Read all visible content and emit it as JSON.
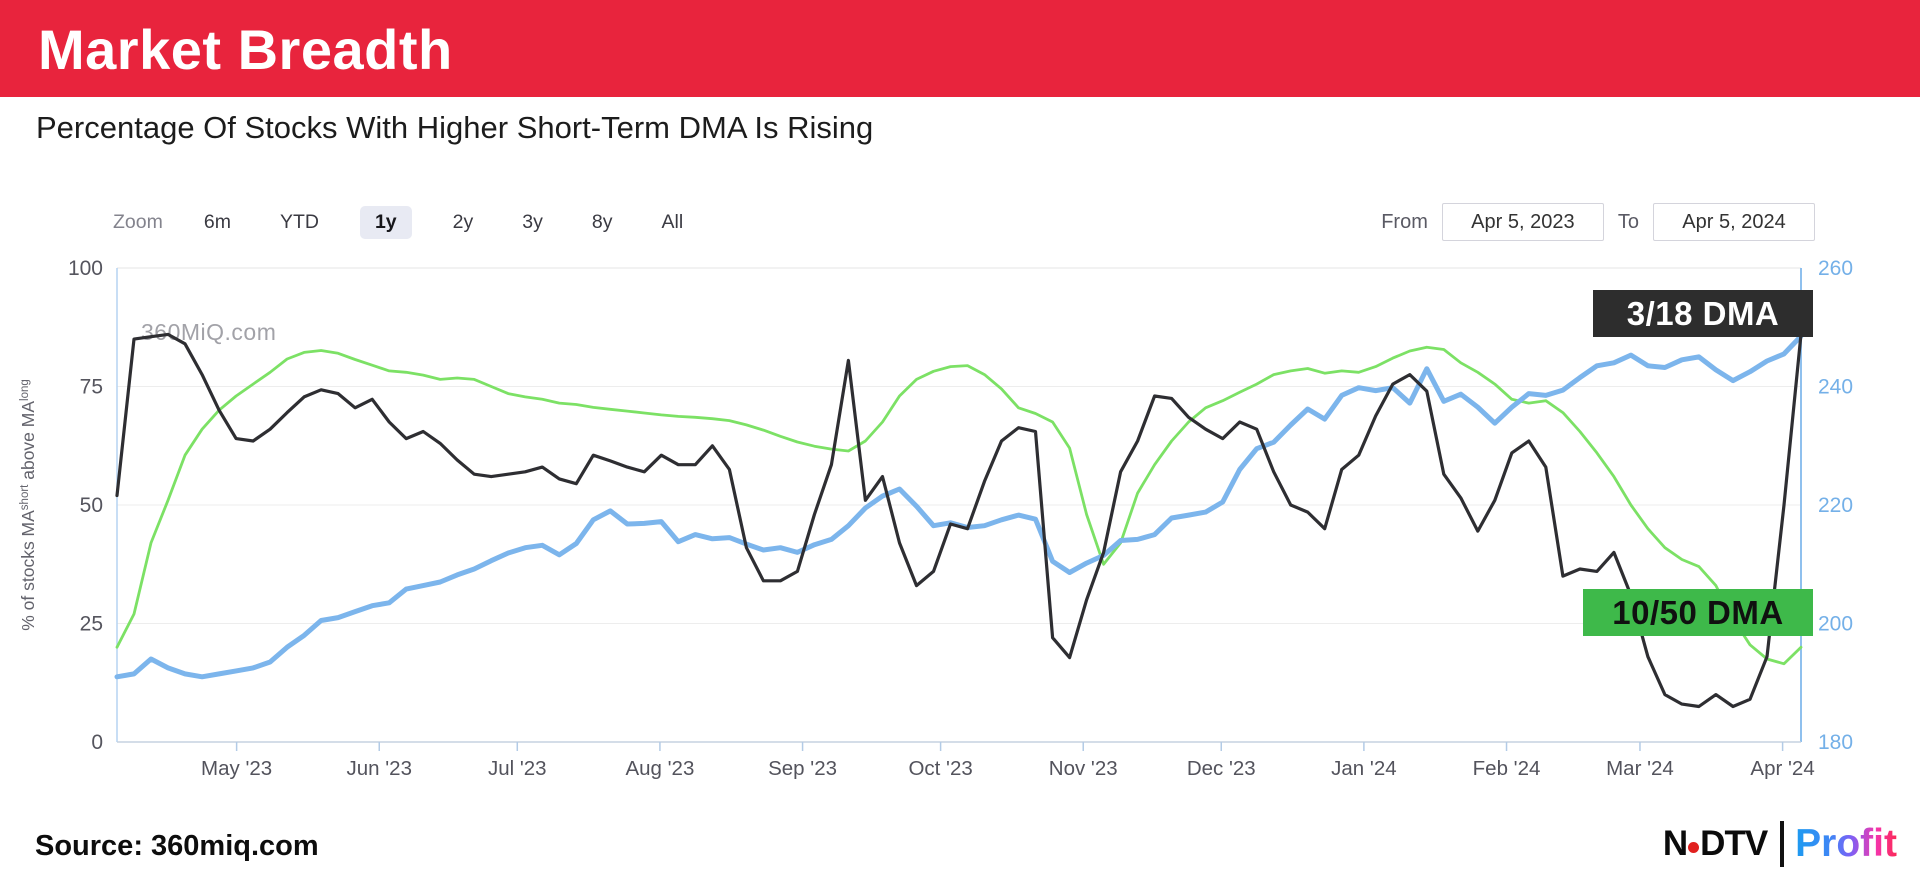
{
  "header": {
    "title": "Market Breadth",
    "bg_color": "#e8243d"
  },
  "subtitle": "Percentage Of Stocks With Higher Short-Term DMA Is Rising",
  "toolbar": {
    "zoom_label": "Zoom",
    "buttons": [
      {
        "label": "6m",
        "selected": false
      },
      {
        "label": "YTD",
        "selected": false
      },
      {
        "label": "1y",
        "selected": true
      },
      {
        "label": "2y",
        "selected": false
      },
      {
        "label": "3y",
        "selected": false
      },
      {
        "label": "8y",
        "selected": false
      },
      {
        "label": "All",
        "selected": false
      }
    ],
    "from_label": "From",
    "from_value": "Apr 5, 2023",
    "to_label": "To",
    "to_value": "Apr 5, 2024"
  },
  "chart_data": {
    "type": "line",
    "x_start": "Apr 5, 2023",
    "x_end": "Apr 5, 2024",
    "watermark": "360MiQ.com",
    "grid": "horizontal",
    "left_axis": {
      "title_parts": {
        "pre": "% of stocks MA",
        "sup1": "short",
        "mid": " above MA",
        "sup2": "long"
      },
      "ticks": [
        0,
        25,
        50,
        75,
        100
      ],
      "lim": [
        0,
        100
      ],
      "label_color": "#55555e"
    },
    "right_axis": {
      "ticks": [
        180,
        200,
        220,
        240,
        260
      ],
      "lim": [
        180,
        260
      ],
      "label_color": "#74b0e8"
    },
    "x_ticks": [
      {
        "label": "May '23",
        "day": 26
      },
      {
        "label": "Jun '23",
        "day": 57
      },
      {
        "label": "Jul '23",
        "day": 87
      },
      {
        "label": "Aug '23",
        "day": 118
      },
      {
        "label": "Sep '23",
        "day": 149
      },
      {
        "label": "Oct '23",
        "day": 179
      },
      {
        "label": "Nov '23",
        "day": 210
      },
      {
        "label": "Dec '23",
        "day": 240
      },
      {
        "label": "Jan '24",
        "day": 271
      },
      {
        "label": "Feb '24",
        "day": 302
      },
      {
        "label": "Mar '24",
        "day": 331
      },
      {
        "label": "Apr '24",
        "day": 362
      }
    ],
    "days_total": 366,
    "series": [
      {
        "id": "dma-10-50",
        "name": "10/50 DMA",
        "axis": "left",
        "color": "#7ce165",
        "width": 2.8,
        "values": [
          20,
          27,
          42,
          51,
          60.5,
          66,
          70,
          73,
          75.5,
          78,
          80.8,
          82.2,
          82.6,
          82,
          80.7,
          79.5,
          78.3,
          78,
          77.4,
          76.5,
          76.8,
          76.5,
          75,
          73.5,
          72.8,
          72.3,
          71.5,
          71.2,
          70.6,
          70.2,
          69.8,
          69.4,
          69,
          68.7,
          68.5,
          68.2,
          67.8,
          66.9,
          65.8,
          64.5,
          63.3,
          62.4,
          61.8,
          61.4,
          63.5,
          67.5,
          73,
          76.5,
          78.2,
          79.2,
          79.4,
          77.5,
          74.5,
          70.5,
          69.3,
          67.5,
          62,
          48,
          37.5,
          42,
          52.5,
          58.5,
          63.5,
          67.5,
          70.5,
          72,
          73.8,
          75.5,
          77.5,
          78.3,
          78.8,
          77.8,
          78.3,
          78,
          79.2,
          81,
          82.5,
          83.3,
          82.8,
          80,
          78,
          75.5,
          72.3,
          71.5,
          72,
          69.5,
          65.5,
          61,
          56,
          50,
          45,
          41,
          38.5,
          37,
          33,
          26,
          20.5,
          17.5,
          16.5,
          20
        ]
      },
      {
        "id": "index-right-axis",
        "name": "",
        "axis": "right",
        "color": "#7cb5ec",
        "width": 5,
        "values": [
          191,
          191.5,
          194,
          192.5,
          191.5,
          191,
          191.5,
          192,
          192.5,
          193.5,
          196,
          198,
          200.5,
          201,
          202,
          203,
          203.5,
          205.8,
          206.4,
          207,
          208.2,
          209.2,
          210.6,
          211.9,
          212.8,
          213.2,
          211.6,
          213.5,
          217.5,
          219,
          216.8,
          216.9,
          217.2,
          213.8,
          215,
          214.3,
          214.5,
          213.4,
          212.4,
          212.8,
          212,
          213.3,
          214.2,
          216.5,
          219.5,
          221.5,
          222.7,
          219.8,
          216.5,
          217,
          216.2,
          216.5,
          217.5,
          218.3,
          217.6,
          210.5,
          208.6,
          210.2,
          211.5,
          214,
          214.2,
          215,
          217.8,
          218.3,
          218.8,
          220.5,
          226,
          229.5,
          230.6,
          233.5,
          236.2,
          234.5,
          238.5,
          239.8,
          239.3,
          239.8,
          237.2,
          243,
          237.5,
          238.7,
          236.5,
          233.8,
          236.5,
          238.8,
          238.5,
          239.4,
          241.5,
          243.5,
          244,
          245.3,
          243.5,
          243.2,
          244.5,
          245,
          242.8,
          241,
          242.5,
          244.3,
          245.5,
          248.5
        ]
      },
      {
        "id": "dma-3-18",
        "name": "3/18 DMA",
        "axis": "left",
        "color": "#2e2e32",
        "width": 3.2,
        "values": [
          52,
          85,
          85.5,
          86,
          84,
          77.5,
          70,
          64,
          63.5,
          66,
          69.5,
          72.8,
          74.3,
          73.5,
          70.5,
          72.3,
          67.5,
          64,
          65.5,
          63,
          59.5,
          56.5,
          56,
          56.5,
          57,
          58,
          55.5,
          54.5,
          60.5,
          59.3,
          58,
          57,
          60.5,
          58.5,
          58.5,
          62.5,
          57.5,
          41,
          34,
          34,
          36,
          48,
          58.5,
          80.5,
          51,
          56,
          42,
          33,
          36,
          46,
          45,
          55,
          63.5,
          66.3,
          65.5,
          22,
          17.8,
          30,
          40,
          57,
          63.5,
          73,
          72.5,
          68.5,
          66,
          64,
          67.5,
          66,
          57,
          50,
          48.5,
          45,
          57.5,
          60.5,
          68.8,
          75.5,
          77.5,
          74,
          56.5,
          51.5,
          44.5,
          51,
          61,
          63.5,
          58,
          35,
          36.5,
          36,
          40,
          31,
          18,
          10,
          8,
          7.5,
          10,
          7.5,
          9,
          18,
          50,
          86
        ]
      }
    ],
    "annotations": [
      {
        "text": "3/18 DMA",
        "bg": "#2d2d2d",
        "fg": "#ffffff"
      },
      {
        "text": "10/50 DMA",
        "bg": "#3eb94a",
        "fg": "#101010"
      }
    ]
  },
  "footer": {
    "source": "Source: 360miq.com",
    "logo": {
      "ndtv_n": "N",
      "ndtv_dtv": "DTV",
      "profit": "Profit"
    }
  }
}
